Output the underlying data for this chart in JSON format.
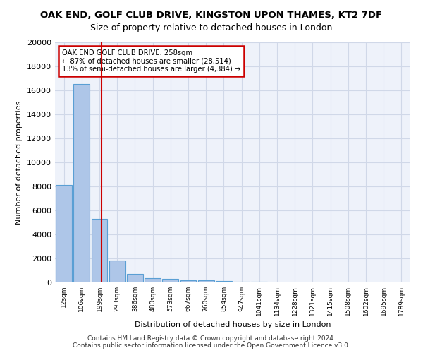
{
  "title_line1": "OAK END, GOLF CLUB DRIVE, KINGSTON UPON THAMES, KT2 7DF",
  "title_line2": "Size of property relative to detached houses in London",
  "xlabel": "Distribution of detached houses by size in London",
  "ylabel": "Number of detached properties",
  "bin_labels": [
    "12sqm",
    "106sqm",
    "199sqm",
    "293sqm",
    "386sqm",
    "480sqm",
    "573sqm",
    "667sqm",
    "760sqm",
    "854sqm",
    "947sqm",
    "1041sqm",
    "1134sqm",
    "1228sqm",
    "1321sqm",
    "1415sqm",
    "1508sqm",
    "1602sqm",
    "1695sqm",
    "1789sqm"
  ],
  "bar_heights": [
    8100,
    16500,
    5300,
    1800,
    700,
    350,
    280,
    200,
    200,
    100,
    50,
    30,
    20,
    15,
    10,
    8,
    5,
    5,
    3,
    3
  ],
  "bar_color": "#aec6e8",
  "bar_edge_color": "#5a9fd4",
  "property_value": 258,
  "property_bin_index": 2,
  "annotation_line1": "OAK END GOLF CLUB DRIVE: 258sqm",
  "annotation_line2": "← 87% of detached houses are smaller (28,514)",
  "annotation_line3": "13% of semi-detached houses are larger (4,384) →",
  "annotation_box_color": "#cc0000",
  "vline_color": "#cc0000",
  "ylim": [
    0,
    20000
  ],
  "yticks": [
    0,
    2000,
    4000,
    6000,
    8000,
    10000,
    12000,
    14000,
    16000,
    18000,
    20000
  ],
  "grid_color": "#d0d8e8",
  "background_color": "#eef2fa",
  "footer_line1": "Contains HM Land Registry data © Crown copyright and database right 2024.",
  "footer_line2": "Contains public sector information licensed under the Open Government Licence v3.0."
}
